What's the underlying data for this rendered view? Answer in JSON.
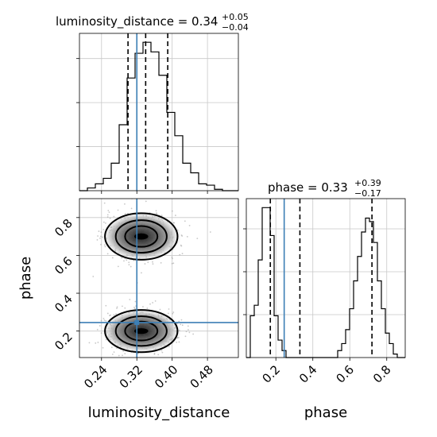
{
  "chart_data": [
    {
      "type": "histogram",
      "panel": "luminosity_distance-marginal",
      "title": "luminosity_distance = 0.34",
      "title_sup": "+0.05",
      "title_sub": "−0.04",
      "xlim": [
        0.19,
        0.55
      ],
      "bins": {
        "edges_start": 0.19,
        "bin_width": 0.018,
        "counts": [
          0,
          2,
          5,
          9,
          20,
          48,
          82,
          100,
          108,
          101,
          84,
          57,
          40,
          20,
          13,
          5,
          4,
          1,
          0,
          0
        ]
      },
      "quantiles": [
        0.3,
        0.34,
        0.39
      ],
      "truth": 0.32
    },
    {
      "type": "histogram",
      "panel": "phase-marginal",
      "title": "phase = 0.33",
      "title_sup": "+0.39",
      "title_sub": "−0.17",
      "xlim": [
        0.04,
        0.9
      ],
      "bins": {
        "edges_start": 0.04,
        "bin_width": 0.0215,
        "counts": [
          0,
          12,
          15,
          28,
          43,
          43,
          35,
          12,
          5,
          2,
          0,
          0,
          0,
          0,
          0,
          0,
          0,
          0,
          0,
          0,
          0,
          0,
          0,
          2,
          4,
          8,
          14,
          22,
          29,
          36,
          40,
          39,
          33,
          22,
          14,
          7,
          4,
          1,
          0,
          0
        ]
      },
      "quantiles": [
        0.17,
        0.33,
        0.72
      ],
      "truth": 0.245,
      "xticks": [
        "0.2",
        "0.4",
        "0.6",
        "0.8"
      ],
      "xlabel": "phase"
    },
    {
      "type": "scatter",
      "panel": "2d-posterior",
      "xlim": [
        0.19,
        0.55
      ],
      "ylim": [
        0.06,
        0.9
      ],
      "modes": [
        {
          "x_center": 0.33,
          "y_center": 0.7,
          "x_sd": 0.035,
          "y_sd": 0.055
        },
        {
          "x_center": 0.33,
          "y_center": 0.2,
          "x_sd": 0.035,
          "y_sd": 0.05
        }
      ],
      "truth": {
        "x": 0.32,
        "y": 0.245
      },
      "xticks": [
        "0.24",
        "0.32",
        "0.40",
        "0.48"
      ],
      "yticks": [
        "0.2",
        "0.4",
        "0.6",
        "0.8"
      ],
      "xlabel": "luminosity_distance",
      "ylabel": "phase"
    }
  ]
}
